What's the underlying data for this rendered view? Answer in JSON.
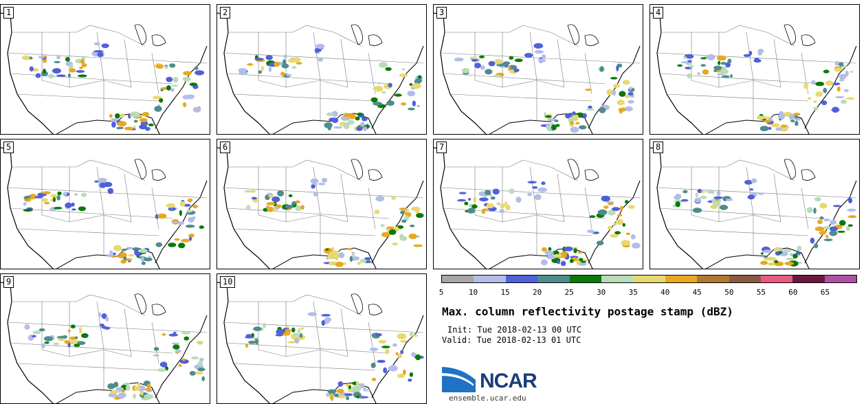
{
  "panels": [
    {
      "label": "1"
    },
    {
      "label": "2"
    },
    {
      "label": "3"
    },
    {
      "label": "4"
    },
    {
      "label": "5"
    },
    {
      "label": "6"
    },
    {
      "label": "7"
    },
    {
      "label": "8"
    },
    {
      "label": "9"
    },
    {
      "label": "10"
    }
  ],
  "colorbar": {
    "colors": [
      "#a6a6a6",
      "#b3bde8",
      "#5060d8",
      "#4e8c8c",
      "#0a7a0a",
      "#b8dcb8",
      "#e8d870",
      "#e8a820",
      "#b07830",
      "#8a5a40",
      "#e85a80",
      "#6a1840",
      "#b050a8"
    ],
    "ticks": [
      "5",
      "10",
      "15",
      "20",
      "25",
      "30",
      "35",
      "40",
      "45",
      "50",
      "55",
      "60",
      "65"
    ]
  },
  "title": "Max. column reflectivity postage stamp (dBZ)",
  "init": "Init: Tue 2018-02-13 00 UTC",
  "valid": "Valid: Tue 2018-02-13 01 UTC",
  "logo_text": "NCAR",
  "url": "ensemble.ucar.edu"
}
